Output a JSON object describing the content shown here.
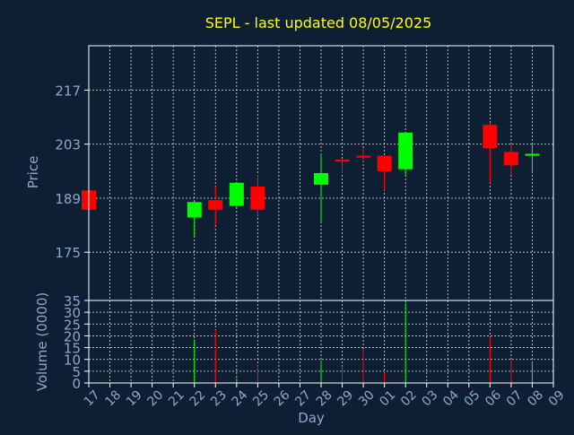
{
  "chart_data": {
    "type": "candlestick",
    "title": "SEPL - last updated 08/05/2025",
    "xlabel": "Day",
    "x_ticks": [
      "17",
      "18",
      "19",
      "20",
      "21",
      "22",
      "23",
      "24",
      "25",
      "26",
      "27",
      "28",
      "29",
      "30",
      "01",
      "02",
      "03",
      "04",
      "05",
      "06",
      "07",
      "08",
      "09"
    ],
    "up_color": "#00ff00",
    "down_color": "#ff0000",
    "price_panel": {
      "ylabel": "Price",
      "yticks": [
        175,
        189,
        203,
        217
      ],
      "ylim": [
        162.5,
        228.5
      ],
      "grid": true,
      "candles": [
        {
          "x": "17",
          "open": 191.0,
          "high": 191.0,
          "low": 186.0,
          "close": 186.0
        },
        {
          "x": "22",
          "open": 184.0,
          "high": 188.0,
          "low": 179.0,
          "close": 188.0
        },
        {
          "x": "23",
          "open": 188.5,
          "high": 192.0,
          "low": 182.0,
          "close": 186.0
        },
        {
          "x": "24",
          "open": 187.0,
          "high": 193.0,
          "low": 186.5,
          "close": 193.0
        },
        {
          "x": "25",
          "open": 192.0,
          "high": 195.0,
          "low": 184.0,
          "close": 186.0
        },
        {
          "x": "28",
          "open": 192.5,
          "high": 200.5,
          "low": 183.0,
          "close": 195.5
        },
        {
          "x": "29",
          "open": 199.0,
          "high": 199.0,
          "low": 195.5,
          "close": 198.5
        },
        {
          "x": "30",
          "open": 200.0,
          "high": 202.0,
          "low": 198.5,
          "close": 199.5
        },
        {
          "x": "01",
          "open": 200.0,
          "high": 200.0,
          "low": 191.0,
          "close": 196.0
        },
        {
          "x": "02",
          "open": 196.5,
          "high": 206.0,
          "low": 195.0,
          "close": 206.0
        },
        {
          "x": "06",
          "open": 208.0,
          "high": 208.5,
          "low": 193.0,
          "close": 202.0
        },
        {
          "x": "07",
          "open": 201.0,
          "high": 203.0,
          "low": 195.0,
          "close": 197.5
        },
        {
          "x": "08",
          "open": 200.0,
          "high": 203.0,
          "low": 195.5,
          "close": 200.5
        }
      ]
    },
    "volume_panel": {
      "ylabel": "Volume (0000)",
      "yticks": [
        0,
        5,
        10,
        15,
        20,
        25,
        30,
        35
      ],
      "ylim": [
        0,
        35
      ],
      "grid": true,
      "bars": [
        {
          "x": "17",
          "value": 0,
          "color": "#ff0000"
        },
        {
          "x": "22",
          "value": 18.5,
          "color": "#00ff00"
        },
        {
          "x": "23",
          "value": 22.5,
          "color": "#ff0000"
        },
        {
          "x": "24",
          "value": 2.0,
          "color": "#00ff00"
        },
        {
          "x": "25",
          "value": 8.0,
          "color": "#ff0000"
        },
        {
          "x": "28",
          "value": 9.5,
          "color": "#00ff00"
        },
        {
          "x": "29",
          "value": 7.0,
          "color": "#ff0000"
        },
        {
          "x": "30",
          "value": 14.5,
          "color": "#ff0000"
        },
        {
          "x": "01",
          "value": 4.5,
          "color": "#ff0000"
        },
        {
          "x": "02",
          "value": 34.0,
          "color": "#00ff00"
        },
        {
          "x": "06",
          "value": 19.5,
          "color": "#ff0000"
        },
        {
          "x": "07",
          "value": 9.5,
          "color": "#ff0000"
        },
        {
          "x": "08",
          "value": 9.0,
          "color": "#00ff00"
        }
      ]
    }
  }
}
